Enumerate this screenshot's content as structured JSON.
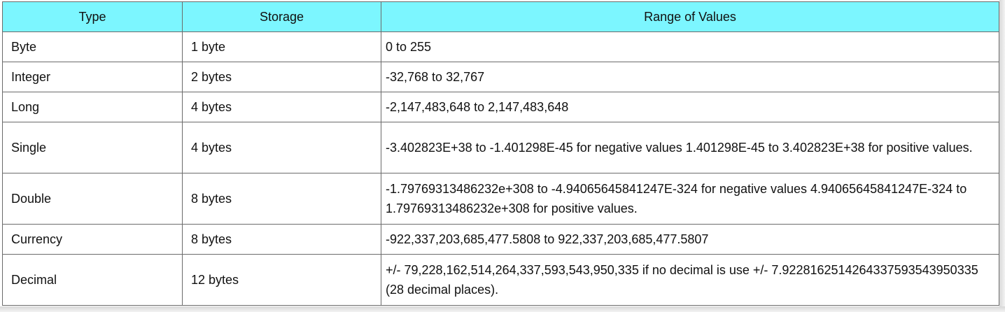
{
  "table": {
    "headers": [
      "Type",
      "Storage",
      "Range of Values"
    ],
    "rows": [
      {
        "type": "Byte",
        "storage": "1 byte",
        "range": " 0 to 255"
      },
      {
        "type": "Integer",
        "storage": "2 bytes",
        "range": " -32,768 to 32,767"
      },
      {
        "type": "Long",
        "storage": "4 bytes",
        "range": "-2,147,483,648 to 2,147,483,648"
      },
      {
        "type": "Single",
        "storage": "4 bytes",
        "range": "-3.402823E+38 to -1.401298E-45 for negative values 1.401298E-45 to 3.402823E+38 for positive values."
      },
      {
        "type": "Double",
        "storage": "8 bytes",
        "range": "-1.79769313486232e+308 to -4.94065645841247E-324 for negative values 4.94065645841247E-324 to 1.79769313486232e+308 for positive values."
      },
      {
        "type": "Currency",
        "storage": "8 bytes",
        "range": "-922,337,203,685,477.5808 to 922,337,203,685,477.5807"
      },
      {
        "type": "Decimal",
        "storage": "12 bytes",
        "range": "+/- 79,228,162,514,264,337,593,543,950,335 if no decimal is use +/- 7.9228162514264337593543950335 (28 decimal places)."
      }
    ]
  }
}
